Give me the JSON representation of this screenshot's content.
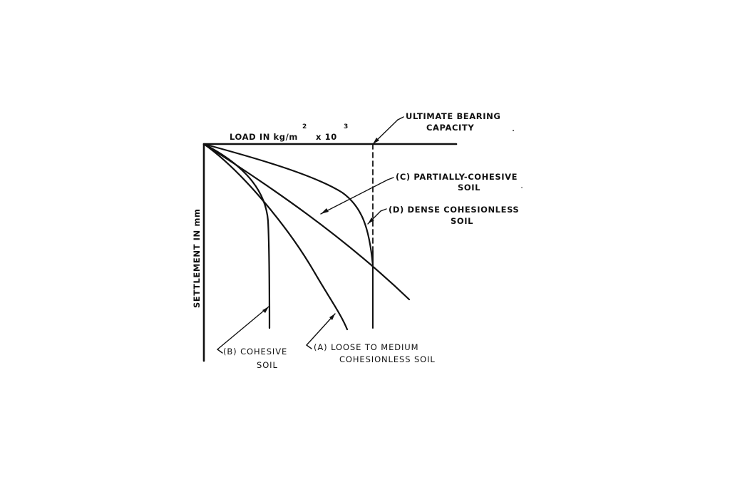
{
  "diagram": {
    "x_axis_label": {
      "text": "LOAD IN kg/m",
      "sup1": "2",
      "mid": "x 10",
      "sup2": "3"
    },
    "y_axis_label": "SETTLEMENT IN mm",
    "ultimate": {
      "line1": "ULTIMATE BEARING",
      "line2": "CAPACITY"
    },
    "curve_c": {
      "line1": "(C) PARTIALLY-COHESIVE",
      "line2": "SOIL"
    },
    "curve_d": {
      "line1": "(D) DENSE COHESIONLESS",
      "line2": "SOIL"
    },
    "curve_b": {
      "line1": "(B) COHESIVE",
      "line2": "SOIL"
    },
    "curve_a": {
      "line1": "(A) LOOSE TO MEDIUM",
      "line2": "COHESIONLESS SOIL"
    }
  }
}
